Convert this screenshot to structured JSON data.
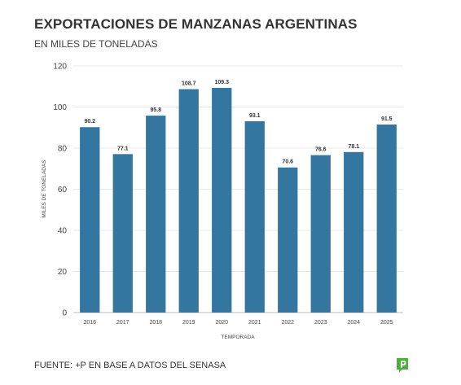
{
  "header": {
    "title": "EXPORTACIONES DE MANZANAS ARGENTINAS",
    "subtitle": "EN MILES DE TONELADAS"
  },
  "footer": {
    "source": "FUENTE: +P EN BASE A DATOS DEL SENASA"
  },
  "colors": {
    "bar": "#33769f",
    "logo": "#4caf3a"
  },
  "logo_icon": "p-logo-icon",
  "chart_data": {
    "type": "bar",
    "title": "EXPORTACIONES DE MANZANAS ARGENTINAS",
    "subtitle": "EN MILES DE TONELADAS",
    "xlabel": "TEMPORADA",
    "ylabel": "MILES DE TONELADAS",
    "ylim": [
      0,
      120
    ],
    "yticks": [
      0,
      20,
      40,
      60,
      80,
      100,
      120
    ],
    "grid": true,
    "categories": [
      "2016",
      "2017",
      "2018",
      "2019",
      "2020",
      "2021",
      "2022",
      "2023",
      "2024",
      "2025"
    ],
    "values": [
      90.2,
      77.1,
      95.8,
      108.7,
      109.3,
      93.1,
      70.6,
      76.6,
      78.1,
      91.5
    ],
    "data_labels": [
      "90.2",
      "77.1",
      "95.8",
      "108.7",
      "109.3",
      "93.1",
      "70.6",
      "76.6",
      "78.1",
      "91.5"
    ]
  }
}
